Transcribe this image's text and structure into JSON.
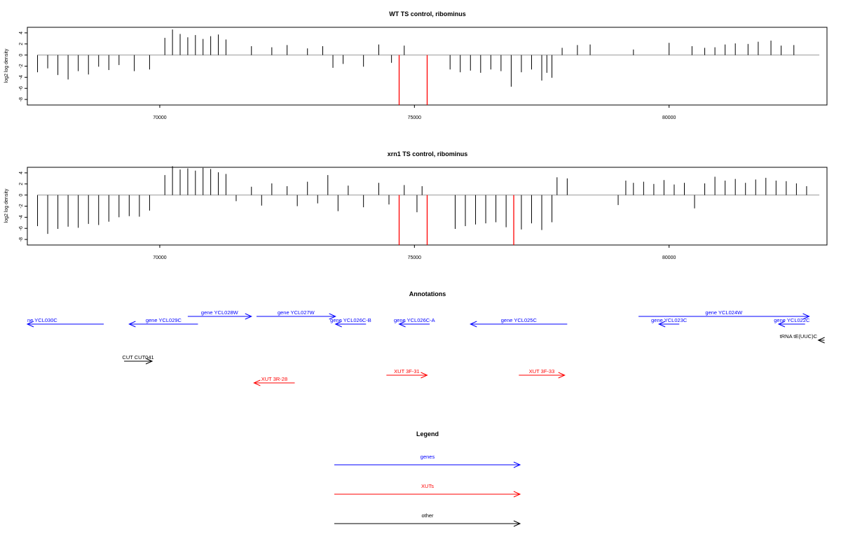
{
  "chart_data": [
    {
      "type": "bar",
      "title": "WT TS control, ribominus",
      "ylabel": "log2 log density",
      "xlim": [
        67400,
        83100
      ],
      "ylim": [
        -9,
        5
      ],
      "xticks": [
        70000,
        75000,
        80000
      ],
      "xtick_labels": [
        "70000",
        "75000",
        "80000"
      ],
      "yticks": [
        4,
        2,
        0,
        -2,
        -4,
        -6,
        -8
      ],
      "ytick_labels": [
        "4",
        "2",
        "0",
        "-2",
        "-4",
        "-6",
        "-8"
      ],
      "series": [
        {
          "values": [
            [
              67600,
              -3.1
            ],
            [
              67800,
              -2.4
            ],
            [
              68000,
              -3.6
            ],
            [
              68200,
              -4.4
            ],
            [
              68400,
              -2.9
            ],
            [
              68600,
              -3.5
            ],
            [
              68800,
              -2.1
            ],
            [
              69000,
              -2.7
            ],
            [
              69200,
              -1.8
            ],
            [
              69500,
              -2.9
            ],
            [
              69800,
              -2.6
            ],
            [
              70100,
              3.1
            ],
            [
              70250,
              4.6
            ],
            [
              70400,
              3.8
            ],
            [
              70550,
              3.2
            ],
            [
              70700,
              3.6
            ],
            [
              70850,
              2.9
            ],
            [
              71000,
              3.4
            ],
            [
              71150,
              3.7
            ],
            [
              71300,
              2.8
            ],
            [
              71800,
              1.6
            ],
            [
              72200,
              1.4
            ],
            [
              72500,
              1.8
            ],
            [
              72900,
              1.2
            ],
            [
              73200,
              1.6
            ],
            [
              73400,
              -2.3
            ],
            [
              73600,
              -1.6
            ],
            [
              74000,
              -2.1
            ],
            [
              74300,
              1.9
            ],
            [
              74550,
              -1.4
            ],
            [
              74800,
              1.7
            ],
            [
              74700,
              -9.0
            ],
            [
              75250,
              -9.0
            ],
            [
              75700,
              -2.6
            ],
            [
              75900,
              -3.1
            ],
            [
              76100,
              -2.8
            ],
            [
              76300,
              -3.2
            ],
            [
              76500,
              -2.6
            ],
            [
              76700,
              -2.9
            ],
            [
              76900,
              -5.7
            ],
            [
              77100,
              -3.1
            ],
            [
              77300,
              -2.6
            ],
            [
              77500,
              -4.6
            ],
            [
              77600,
              -3.2
            ],
            [
              77700,
              -4.1
            ],
            [
              77900,
              1.3
            ],
            [
              78200,
              1.8
            ],
            [
              78450,
              1.9
            ],
            [
              79300,
              1.0
            ],
            [
              80000,
              2.2
            ],
            [
              80450,
              1.6
            ],
            [
              80700,
              1.3
            ],
            [
              80900,
              1.4
            ],
            [
              81100,
              1.9
            ],
            [
              81300,
              2.1
            ],
            [
              81550,
              2.0
            ],
            [
              81750,
              2.4
            ],
            [
              82000,
              2.6
            ],
            [
              82200,
              1.7
            ],
            [
              82450,
              1.8
            ]
          ]
        }
      ]
    },
    {
      "type": "bar",
      "title": "xrn1 TS control, ribominus",
      "ylabel": "log2 log density",
      "xlim": [
        67400,
        83100
      ],
      "ylim": [
        -9,
        5
      ],
      "xticks": [
        70000,
        75000,
        80000
      ],
      "xtick_labels": [
        "70000",
        "75000",
        "80000"
      ],
      "yticks": [
        4,
        2,
        0,
        -2,
        -4,
        -6,
        -8
      ],
      "ytick_labels": [
        "4",
        "2",
        "0",
        "-2",
        "-4",
        "-6",
        "-8"
      ],
      "series": [
        {
          "values": [
            [
              67600,
              -5.6
            ],
            [
              67800,
              -7.0
            ],
            [
              68000,
              -6.1
            ],
            [
              68200,
              -5.7
            ],
            [
              68400,
              -5.9
            ],
            [
              68600,
              -5.2
            ],
            [
              68800,
              -5.4
            ],
            [
              69000,
              -4.8
            ],
            [
              69200,
              -4.0
            ],
            [
              69400,
              -3.8
            ],
            [
              69600,
              -3.9
            ],
            [
              69800,
              -2.8
            ],
            [
              70100,
              3.6
            ],
            [
              70250,
              5.2
            ],
            [
              70400,
              4.6
            ],
            [
              70550,
              4.8
            ],
            [
              70700,
              4.4
            ],
            [
              70850,
              4.9
            ],
            [
              71000,
              4.7
            ],
            [
              71150,
              4.1
            ],
            [
              71300,
              3.8
            ],
            [
              71500,
              -1.1
            ],
            [
              71800,
              1.5
            ],
            [
              72000,
              -1.9
            ],
            [
              72200,
              2.1
            ],
            [
              72500,
              1.6
            ],
            [
              72700,
              -2.0
            ],
            [
              72900,
              2.4
            ],
            [
              73100,
              -1.5
            ],
            [
              73300,
              3.6
            ],
            [
              73500,
              -2.9
            ],
            [
              73700,
              1.7
            ],
            [
              74000,
              -2.2
            ],
            [
              74300,
              2.2
            ],
            [
              74500,
              -1.7
            ],
            [
              74800,
              1.8
            ],
            [
              75050,
              -3.1
            ],
            [
              75150,
              1.6
            ],
            [
              74700,
              -9.0
            ],
            [
              75250,
              -9.0
            ],
            [
              75800,
              -6.1
            ],
            [
              76000,
              -5.6
            ],
            [
              76200,
              -5.3
            ],
            [
              76400,
              -5.1
            ],
            [
              76600,
              -4.9
            ],
            [
              76800,
              -5.8
            ],
            [
              76950,
              -9.0
            ],
            [
              77100,
              -6.2
            ],
            [
              77300,
              -5.1
            ],
            [
              77500,
              -6.3
            ],
            [
              77700,
              -4.9
            ],
            [
              77800,
              3.2
            ],
            [
              78000,
              3.0
            ],
            [
              79000,
              -1.8
            ],
            [
              79150,
              2.6
            ],
            [
              79300,
              2.2
            ],
            [
              79500,
              2.4
            ],
            [
              79700,
              2.0
            ],
            [
              79900,
              2.7
            ],
            [
              80100,
              1.9
            ],
            [
              80300,
              2.2
            ],
            [
              80500,
              -2.4
            ],
            [
              80700,
              2.1
            ],
            [
              80900,
              3.3
            ],
            [
              81100,
              2.6
            ],
            [
              81300,
              2.9
            ],
            [
              81500,
              2.2
            ],
            [
              81700,
              2.8
            ],
            [
              81900,
              3.1
            ],
            [
              82100,
              2.6
            ],
            [
              82300,
              2.5
            ],
            [
              82500,
              2.1
            ],
            [
              82700,
              1.6
            ]
          ]
        }
      ]
    }
  ],
  "annotations": {
    "title": "Annotations",
    "items": [
      {
        "label": "ne YCL030C",
        "color": "#0000ff",
        "start": 67400,
        "end": 68900,
        "strand": "-",
        "row": 1
      },
      {
        "label": "gene YCL029C",
        "color": "#0000ff",
        "start": 69400,
        "end": 70750,
        "strand": "-",
        "row": 1
      },
      {
        "label": "gene YCL028W",
        "color": "#0000ff",
        "start": 70550,
        "end": 71800,
        "strand": "+",
        "row": 0
      },
      {
        "label": "gene YCL027W",
        "color": "#0000ff",
        "start": 71900,
        "end": 73450,
        "strand": "+",
        "row": 0
      },
      {
        "label": "gene YCL026C-B",
        "color": "#0000ff",
        "start": 73450,
        "end": 74050,
        "strand": "-",
        "row": 1
      },
      {
        "label": "gene YCL026C-A",
        "color": "#0000ff",
        "start": 74700,
        "end": 75300,
        "strand": "-",
        "row": 1
      },
      {
        "label": "gene YCL025C",
        "color": "#0000ff",
        "start": 76100,
        "end": 78000,
        "strand": "-",
        "row": 1
      },
      {
        "label": "gene YCL024W",
        "color": "#0000ff",
        "start": 79400,
        "end": 82750,
        "strand": "+",
        "row": 0
      },
      {
        "label": "gene YCL023C",
        "color": "#0000ff",
        "start": 79800,
        "end": 80200,
        "strand": "-",
        "row": 1
      },
      {
        "label": "gene YCL022C",
        "color": "#0000ff",
        "start": 82150,
        "end": 82670,
        "strand": "-",
        "row": 1
      },
      {
        "label": "tRNA tE(UUC)C",
        "color": "#000000",
        "start": 82930,
        "end": 83050,
        "strand": "-",
        "row": 2
      },
      {
        "label": "CUT CUT041",
        "color": "#000000",
        "start": 69300,
        "end": 69850,
        "strand": "+",
        "row": 3
      },
      {
        "label": "XUT 3R-28",
        "color": "#ff0000",
        "start": 71850,
        "end": 72650,
        "strand": "-",
        "row": 5
      },
      {
        "label": "XUT 3F-31",
        "color": "#ff0000",
        "start": 74450,
        "end": 75250,
        "strand": "+",
        "row": 4
      },
      {
        "label": "XUT 3F-33",
        "color": "#ff0000",
        "start": 77050,
        "end": 77950,
        "strand": "+",
        "row": 4
      }
    ]
  },
  "legend": {
    "title": "Legend",
    "items": [
      {
        "label": "genes",
        "color": "#0000ff"
      },
      {
        "label": "XUTs",
        "color": "#ff0000"
      },
      {
        "label": "other",
        "color": "#000000"
      }
    ]
  },
  "colors": {
    "bars": "#000000",
    "highlight": "#ff0000",
    "zero_line": "#999999"
  }
}
